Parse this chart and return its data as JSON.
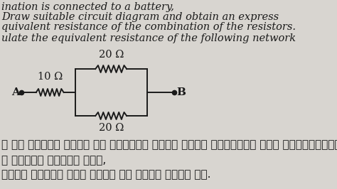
{
  "bg_color": "#d8d5d0",
  "text_color": "#1a1a1a",
  "line_color": "#1a1a1a",
  "top_text_1": "ination is connected to a battery,",
  "top_text_2": "Draw suitable circuit diagram and obtain an express",
  "top_text_3": "quivalent resistance of the combination of the resistors.",
  "top_text_4": "ulate the equivalent resistance of the following network",
  "bottom_text_1": "क के आवर्त नियम को चुनौती देने वाले किन्हीं तीन प्रेक्षणों की सूची ब",
  "bottom_text_2": "क आवर्त सारणी में,",
  "bottom_text_3": "किसी आवर्त में बाएँ से दाएँ जाने पर.",
  "label_A": "A",
  "label_B": "B",
  "label_10ohm": "10 Ω",
  "label_20ohm_top": "20 Ω",
  "label_20ohm_bot": "20 Ω",
  "font_size_top": 10.5,
  "font_size_labels": 11,
  "font_size_hindi": 11,
  "font_size_ohm": 10.5
}
